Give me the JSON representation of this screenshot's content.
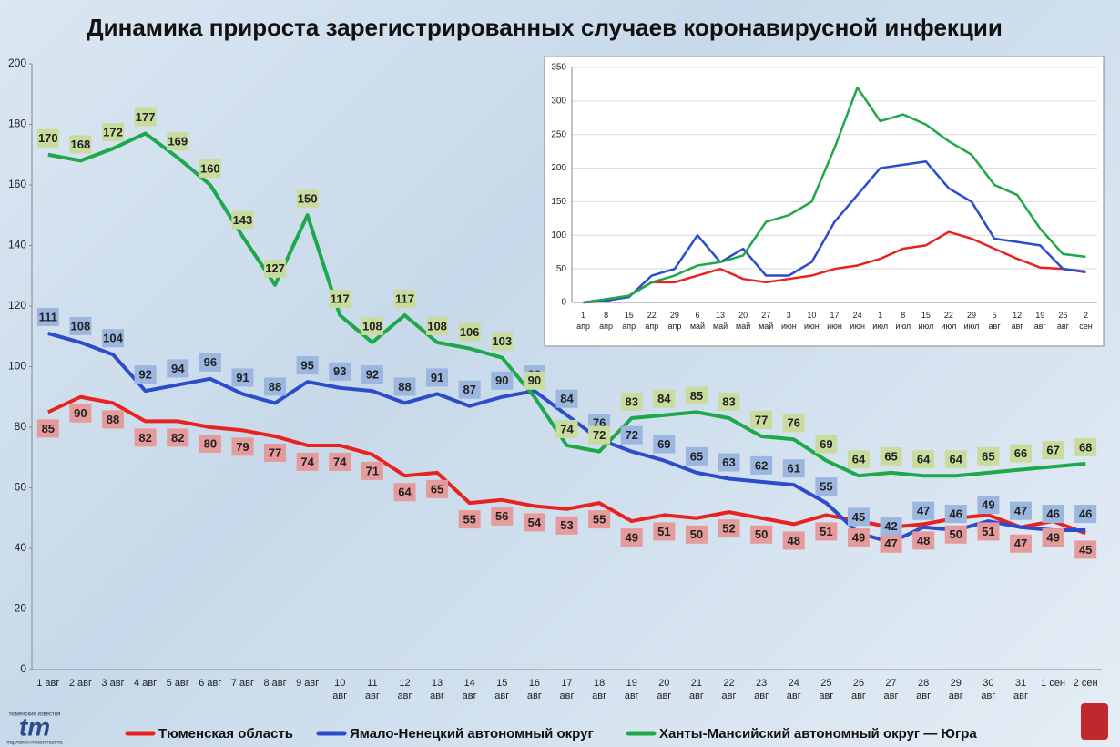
{
  "chart_data": [
    {
      "type": "line",
      "title": "Динамика прироста зарегистрированных случаев коронавирусной инфекции",
      "categories": [
        "1 авг",
        "2 авг",
        "3 авг",
        "4 авг",
        "5 авг",
        "6 авг",
        "7 авг",
        "8 авг",
        "9 авг",
        "10\nавг",
        "11\nавг",
        "12\nавг",
        "13\nавг",
        "14\nавг",
        "15\nавг",
        "16\nавг",
        "17\nавг",
        "18\nавг",
        "19\nавг",
        "20\nавг",
        "21\nавг",
        "22\nавг",
        "23\nавг",
        "24\nавг",
        "25\nавг",
        "26\nавг",
        "27\nавг",
        "28\nавг",
        "29\nавг",
        "30\nавг",
        "31\nавг",
        "1 сен",
        "2 сен"
      ],
      "series": [
        {
          "name": "Тюменская область",
          "color": "#e8231f",
          "label_color": "#e59b9b",
          "values": [
            85,
            90,
            88,
            82,
            82,
            80,
            79,
            77,
            74,
            74,
            71,
            64,
            65,
            55,
            56,
            54,
            53,
            55,
            49,
            51,
            50,
            52,
            50,
            48,
            51,
            49,
            47,
            48,
            50,
            51,
            47,
            49,
            45
          ]
        },
        {
          "name": "Ямало-Ненецкий автономный округ",
          "color": "#2c4ccc",
          "label_color": "#9bb6df",
          "values": [
            111,
            108,
            104,
            92,
            94,
            96,
            91,
            88,
            95,
            93,
            92,
            88,
            91,
            87,
            90,
            92,
            84,
            76,
            72,
            69,
            65,
            63,
            62,
            61,
            55,
            45,
            42,
            47,
            46,
            49,
            47,
            46,
            46
          ]
        },
        {
          "name": "Ханты-Мансийский автономный округ — Югра",
          "color": "#1ea84a",
          "label_color": "#c9dc9e",
          "values": [
            170,
            168,
            172,
            177,
            169,
            160,
            143,
            127,
            150,
            117,
            108,
            117,
            108,
            106,
            103,
            90,
            74,
            72,
            83,
            84,
            85,
            83,
            77,
            76,
            69,
            64,
            65,
            64,
            64,
            65,
            66,
            67,
            68
          ]
        }
      ],
      "ylim": [
        0,
        200
      ],
      "yticks": [
        0,
        20,
        40,
        60,
        80,
        100,
        120,
        140,
        160,
        180,
        200
      ],
      "data_labels": true,
      "legend": "bottom"
    },
    {
      "type": "line",
      "categories": [
        "1\nапр",
        "8\nапр",
        "15\nапр",
        "22\nапр",
        "29\nапр",
        "6\nмай",
        "13\nмай",
        "20\nмай",
        "27\nмай",
        "3\nиюн",
        "10\nиюн",
        "17\nиюн",
        "24\nиюн",
        "1\nиюл",
        "8\nиюл",
        "15\nиюл",
        "22\nиюл",
        "29\nиюл",
        "5\nавг",
        "12\nавг",
        "19\nавг",
        "26\nавг",
        "2\nсен"
      ],
      "series": [
        {
          "color": "#e8231f",
          "values": [
            0,
            2,
            10,
            30,
            30,
            40,
            50,
            35,
            30,
            35,
            40,
            50,
            55,
            65,
            80,
            85,
            105,
            95,
            80,
            65,
            52,
            50,
            45
          ]
        },
        {
          "color": "#2c4ccc",
          "values": [
            0,
            3,
            8,
            40,
            50,
            100,
            60,
            80,
            40,
            40,
            60,
            120,
            160,
            200,
            205,
            210,
            170,
            150,
            95,
            90,
            85,
            50,
            46
          ]
        },
        {
          "color": "#1ea84a",
          "values": [
            0,
            5,
            10,
            30,
            40,
            55,
            60,
            70,
            120,
            130,
            150,
            230,
            320,
            270,
            280,
            265,
            240,
            220,
            175,
            160,
            110,
            72,
            68
          ]
        }
      ],
      "ylim": [
        0,
        350
      ],
      "yticks": [
        0,
        50,
        100,
        150,
        200,
        250,
        300,
        350
      ],
      "grid": true
    }
  ],
  "logo": {
    "top": "тюменские известия",
    "mark": "tm",
    "bottom": "парламентская газета"
  }
}
